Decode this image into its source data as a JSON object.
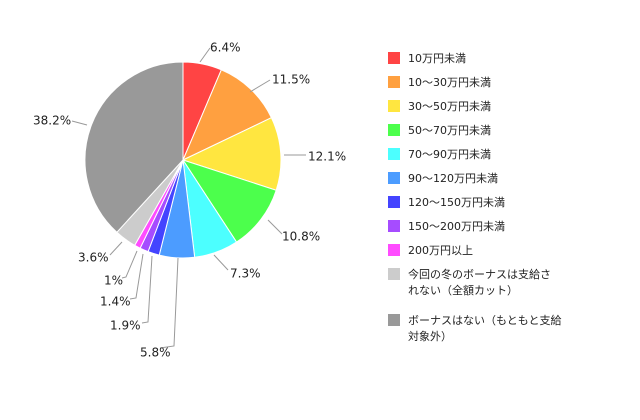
{
  "chart_data": {
    "type": "pie",
    "title": "",
    "start": "12 o'clock",
    "direction": "clockwise",
    "legend_position": "right",
    "slices": [
      {
        "label": "10万円未満",
        "value": 6.4,
        "value_label": "6.4%",
        "color": "#ff4444"
      },
      {
        "label": "10～30万円未満",
        "value": 11.5,
        "value_label": "11.5%",
        "color": "#ffa040"
      },
      {
        "label": "30～50万円未満",
        "value": 12.1,
        "value_label": "12.1%",
        "color": "#ffe640"
      },
      {
        "label": "50～70万円未満",
        "value": 10.8,
        "value_label": "10.8%",
        "color": "#4cff4c"
      },
      {
        "label": "70～90万円未満",
        "value": 7.3,
        "value_label": "7.3%",
        "color": "#4cffff"
      },
      {
        "label": "90～120万円未満",
        "value": 5.8,
        "value_label": "5.8%",
        "color": "#4c9cff"
      },
      {
        "label": "120～150万円未満",
        "value": 1.9,
        "value_label": "1.9%",
        "color": "#4444ff"
      },
      {
        "label": "150～200万円未満",
        "value": 1.4,
        "value_label": "1.4%",
        "color": "#a64cff"
      },
      {
        "label": "200万円以上",
        "value": 1.0,
        "value_label": "1%",
        "color": "#ff4cff"
      },
      {
        "label_lines": [
          "今回の冬のボーナスは支給さ",
          "れない（全額カット）"
        ],
        "value": 3.6,
        "value_label": "3.6%",
        "color": "#cccccc"
      },
      {
        "label_lines": [
          "ボーナスはない（もともと支給",
          "対象外）"
        ],
        "value": 38.2,
        "value_label": "38.2%",
        "color": "#999999"
      }
    ]
  }
}
